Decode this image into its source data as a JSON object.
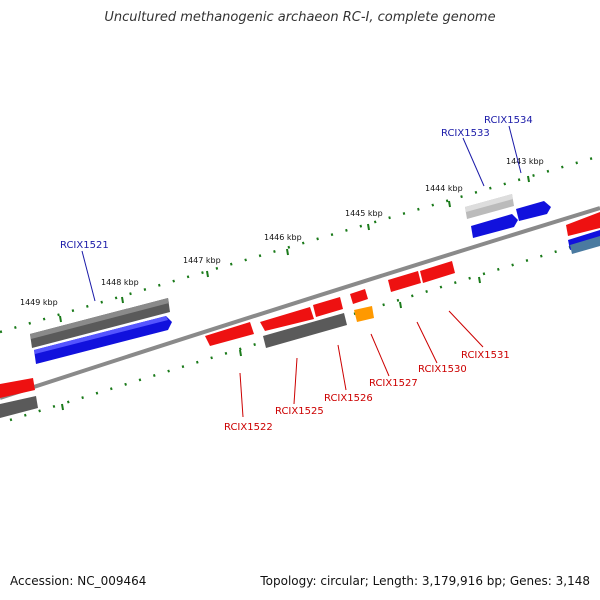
{
  "title": "Uncultured methanogenic archaeon RC-I, complete genome",
  "footer": {
    "accession": "Accession: NC_009464",
    "summary": "Topology: circular; Length: 3,179,916 bp; Genes: 3,148"
  },
  "scale_labels": [
    "1443 kbp",
    "1444 kbp",
    "1445 kbp",
    "1446 kbp",
    "1447 kbp",
    "1448 kbp",
    "1449 kbp"
  ],
  "gene_labels": {
    "RCIX1521": "RCIX1521",
    "RCIX1522": "RCIX1522",
    "RCIX1525": "RCIX1525",
    "RCIX1526": "RCIX1526",
    "RCIX1527": "RCIX1527",
    "RCIX1530": "RCIX1530",
    "RCIX1531": "RCIX1531",
    "RCIX1533": "RCIX1533",
    "RCIX1534": "RCIX1534"
  },
  "colors": {
    "red_gene": "#ee1111",
    "blue_gene": "#1111dd",
    "gray_gene": "#5a5a5a",
    "light_gray_gene": "#bbbbbb",
    "orange_gene": "#ff9900",
    "tick_green": "#1a7a1a",
    "backbone": "#8a8a8a"
  }
}
